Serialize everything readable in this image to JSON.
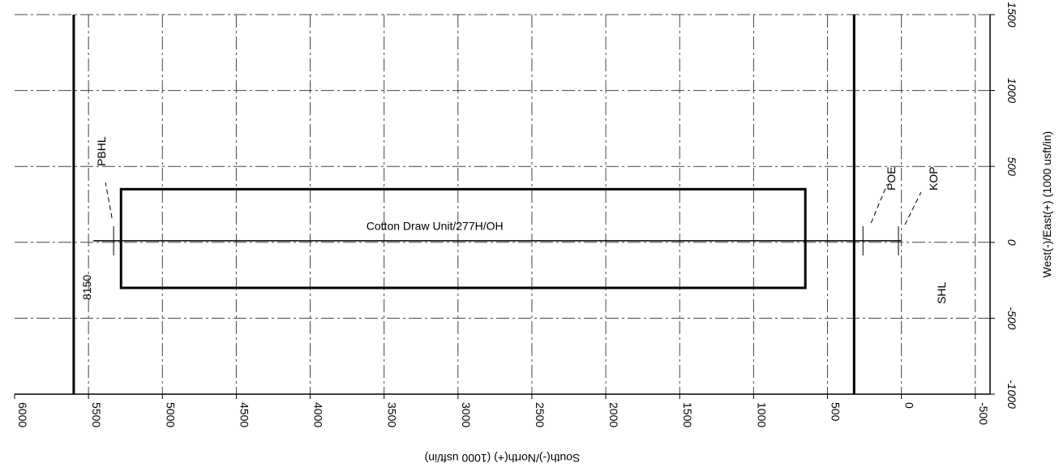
{
  "chart_data": {
    "type": "scatter",
    "title": "",
    "xlabel": "South(-)/North(+) (1000 usft/in)",
    "ylabel": "West(-)/East(+) (1000 usft/in)",
    "x_direction": "decreasing to the right",
    "xlim": [
      6000,
      -600
    ],
    "ylim": [
      -1000,
      1500
    ],
    "x_ticks": [
      6000,
      5500,
      5000,
      4500,
      4000,
      3500,
      3000,
      2500,
      2000,
      1500,
      1000,
      500,
      0,
      -500
    ],
    "y_ticks": [
      -1000,
      -500,
      0,
      500,
      1000,
      1500
    ],
    "grid": true,
    "lease_lines": [
      {
        "name": "west-lease-line",
        "x": 5600,
        "y1": -1000,
        "y2": 1500
      },
      {
        "name": "east-lease-line",
        "x": 320,
        "y1": -1000,
        "y2": 1500
      }
    ],
    "target": {
      "label": "Cotton Draw Unit/277H/OH",
      "x_min": 650,
      "x_max": 5280,
      "y_min": -300,
      "y_max": 350
    },
    "wellbore": {
      "x": [
        5330,
        0
      ],
      "y": [
        10,
        10
      ]
    },
    "stations": [
      {
        "label": "PBHL",
        "x": 5330,
        "y": 10
      },
      {
        "label": "POE",
        "x": 260,
        "y": 10
      },
      {
        "label": "KOP",
        "x": 20,
        "y": 10
      },
      {
        "label": "SHL",
        "x": 20,
        "y": 10
      }
    ],
    "depth_label": "8150"
  }
}
